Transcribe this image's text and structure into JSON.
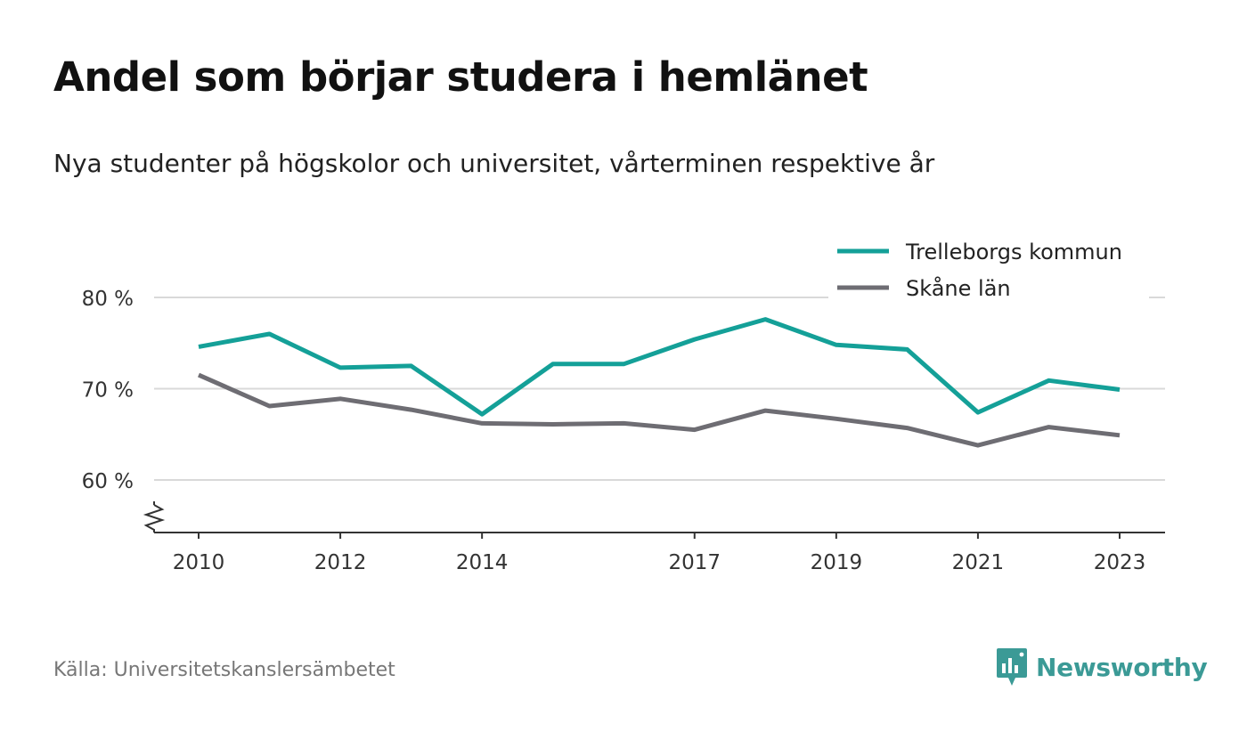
{
  "title": "Andel som börjar studera i hemlänet",
  "subtitle": "Nya studenter på högskolor och universitet, vårterminen respektive år",
  "source": "Källa: Universitetskanslersämbetet",
  "brand": {
    "name": "Newsworthy",
    "icon": "newsworthy-logo-icon"
  },
  "colors": {
    "trelleborg": "#14a098",
    "skane": "#6e6d73",
    "grid": "#d9d9d9",
    "axis": "#333333",
    "brand": "#3b9a96"
  },
  "chart_data": {
    "type": "line",
    "title": "Andel som börjar studera i hemlänet",
    "subtitle": "Nya studenter på högskolor och universitet, vårterminen respektive år",
    "x": [
      2010,
      2011,
      2012,
      2013,
      2014,
      2015,
      2016,
      2017,
      2018,
      2019,
      2020,
      2021,
      2022,
      2023
    ],
    "x_tick_labels": [
      "2010",
      "2012",
      "2014",
      "2017",
      "2019",
      "2021",
      "2023"
    ],
    "y_tick_labels": [
      "60 %",
      "70 %",
      "80 %"
    ],
    "y_ticks": [
      60,
      70,
      80
    ],
    "ylim": [
      54,
      82
    ],
    "y_axis_break": true,
    "grid": true,
    "legend_position": "top-right",
    "series": [
      {
        "name": "Trelleborgs kommun",
        "color": "#14a098",
        "values": [
          74.6,
          76.0,
          72.3,
          72.5,
          67.2,
          72.7,
          72.7,
          75.4,
          77.6,
          74.8,
          74.3,
          67.4,
          70.9,
          69.9
        ]
      },
      {
        "name": "Skåne län",
        "color": "#6e6d73",
        "values": [
          71.5,
          68.1,
          68.9,
          67.7,
          66.2,
          66.1,
          66.2,
          65.5,
          67.6,
          66.7,
          65.7,
          63.8,
          65.8,
          64.9
        ]
      }
    ]
  }
}
